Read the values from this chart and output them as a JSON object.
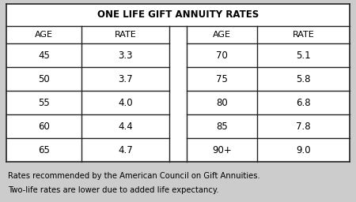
{
  "title": "ONE LIFE GIFT ANNUITY RATES",
  "left_ages": [
    "45",
    "50",
    "55",
    "60",
    "65"
  ],
  "left_rates": [
    "3.3",
    "3.7",
    "4.0",
    "4.4",
    "4.7"
  ],
  "right_ages": [
    "70",
    "75",
    "80",
    "85",
    "90+"
  ],
  "right_rates": [
    "5.1",
    "5.8",
    "6.8",
    "7.8",
    "9.0"
  ],
  "footnote_line1": "Rates recommended by the American Council on Gift Annuities.",
  "footnote_line2": "Two-life rates are lower due to added life expectancy.",
  "table_bg": "#ffffff",
  "footer_bg": "#cccccc",
  "border_color": "#222222",
  "title_fontsize": 8.5,
  "header_fontsize": 8.0,
  "data_fontsize": 8.5,
  "footnote_fontsize": 7.2,
  "fig_width": 4.5,
  "fig_height": 2.56,
  "fig_dpi": 100
}
